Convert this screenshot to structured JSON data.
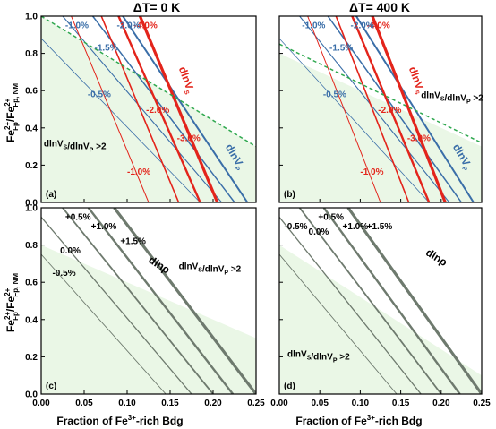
{
  "figure": {
    "title_left": "ΔT= 0 K",
    "title_right": "ΔT= 400 K",
    "xlabel": "Fraction of Fe3+-rich Bdg",
    "ylabel": "Fe2+Fp/Fe2+Fp, NM",
    "x_ticks": [
      "0.00",
      "0.05",
      "0.10",
      "0.15",
      "0.20",
      "0.25"
    ],
    "y_ticks": [
      "0.0",
      "0.2",
      "0.4",
      "0.6",
      "0.8",
      "1.0"
    ]
  },
  "colors": {
    "red": "#e3241b",
    "blue": "#3a6ea8",
    "green_dash": "#2fa84f",
    "shade": "#eaf7e6",
    "black": "#000000",
    "gray": "#6e7a6e"
  },
  "chart_data": [
    {
      "id": "a",
      "panel_label": "(a)",
      "type": "line",
      "xlim": [
        0,
        0.25
      ],
      "ylim": [
        0,
        1
      ],
      "shade": [
        [
          0.0,
          1.0
        ],
        [
          0.25,
          0.3
        ]
      ],
      "dashed": [
        [
          0.0,
          1.0
        ],
        [
          0.25,
          0.3
        ]
      ],
      "red_lines": [
        {
          "label": "-4.0%",
          "width": 3.2,
          "p": [
            [
              0.115,
              1.0
            ],
            [
              0.205,
              0.0
            ]
          ]
        },
        {
          "label": "-3.0%",
          "width": 2.4,
          "p": [
            [
              0.09,
              1.0
            ],
            [
              0.185,
              0.0
            ]
          ]
        },
        {
          "label": "-2.0%",
          "width": 1.6,
          "p": [
            [
              0.07,
              1.0
            ],
            [
              0.16,
              0.0
            ]
          ]
        },
        {
          "label": "-1.0%",
          "width": 1.0,
          "p": [
            [
              0.035,
              1.0
            ],
            [
              0.125,
              0.0
            ]
          ]
        }
      ],
      "blue_lines": [
        {
          "label": "-2.0%",
          "width": 2.0,
          "p": [
            [
              0.095,
              1.0
            ],
            [
              0.24,
              0.0
            ]
          ]
        },
        {
          "label": "-1.5%",
          "width": 1.5,
          "p": [
            [
              0.06,
              1.0
            ],
            [
              0.225,
              0.0
            ]
          ]
        },
        {
          "label": "-1.0%",
          "width": 1.1,
          "p": [
            [
              0.025,
              1.0
            ],
            [
              0.21,
              0.0
            ]
          ]
        },
        {
          "label": "-0.5%",
          "width": 0.8,
          "p": [
            [
              0.0,
              0.88
            ],
            [
              0.185,
              0.0
            ]
          ]
        }
      ],
      "red_annotations": [
        {
          "text": "-4.0%",
          "at": [
            0.108,
            0.935
          ]
        },
        {
          "text": "-3.0%",
          "at": [
            0.158,
            0.33
          ]
        },
        {
          "text": "-2.0%",
          "at": [
            0.122,
            0.48
          ]
        },
        {
          "text": "-1.0%",
          "at": [
            0.1,
            0.15
          ]
        }
      ],
      "blue_annotations": [
        {
          "text": "-2.0%",
          "at": [
            0.088,
            0.935
          ]
        },
        {
          "text": "-1.5%",
          "at": [
            0.062,
            0.815
          ]
        },
        {
          "text": "-1.0%",
          "at": [
            0.028,
            0.935
          ]
        },
        {
          "text": "-0.5%",
          "at": [
            0.054,
            0.565
          ]
        }
      ],
      "series_labels": [
        {
          "text": "dlnVS",
          "color": "red",
          "at": [
            0.16,
            0.72
          ],
          "rotate": 70
        },
        {
          "text": "dlnVP",
          "color": "blue",
          "at": [
            0.214,
            0.3
          ],
          "rotate": 60
        }
      ],
      "ratio_label": {
        "text": "dlnVS/dlnVP >2",
        "at": [
          0.003,
          0.3
        ]
      }
    },
    {
      "id": "b",
      "panel_label": "(b)",
      "type": "line",
      "xlim": [
        0,
        0.25
      ],
      "ylim": [
        0,
        1
      ],
      "shade": [
        [
          0.0,
          0.8
        ],
        [
          0.25,
          0.3
        ]
      ],
      "dashed": [
        [
          0.0,
          0.85
        ],
        [
          0.25,
          0.32
        ]
      ],
      "red_lines": [
        {
          "label": "-4.0%",
          "width": 3.2,
          "p": [
            [
              0.115,
              1.0
            ],
            [
              0.205,
              0.0
            ]
          ]
        },
        {
          "label": "-3.0%",
          "width": 2.4,
          "p": [
            [
              0.09,
              1.0
            ],
            [
              0.185,
              0.0
            ]
          ]
        },
        {
          "label": "-2.0%",
          "width": 1.6,
          "p": [
            [
              0.07,
              1.0
            ],
            [
              0.16,
              0.0
            ]
          ]
        },
        {
          "label": "-1.0%",
          "width": 1.0,
          "p": [
            [
              0.035,
              1.0
            ],
            [
              0.125,
              0.0
            ]
          ]
        }
      ],
      "blue_lines": [
        {
          "label": "-2.0%",
          "width": 2.0,
          "p": [
            [
              0.095,
              1.0
            ],
            [
              0.24,
              0.0
            ]
          ]
        },
        {
          "label": "-1.5%",
          "width": 1.5,
          "p": [
            [
              0.06,
              1.0
            ],
            [
              0.225,
              0.0
            ]
          ]
        },
        {
          "label": "-1.0%",
          "width": 1.1,
          "p": [
            [
              0.025,
              1.0
            ],
            [
              0.21,
              0.0
            ]
          ]
        },
        {
          "label": "-0.5%",
          "width": 0.8,
          "p": [
            [
              0.0,
              0.88
            ],
            [
              0.185,
              0.0
            ]
          ]
        }
      ],
      "red_annotations": [
        {
          "text": "-4.0%",
          "at": [
            0.108,
            0.935
          ]
        },
        {
          "text": "-3.0%",
          "at": [
            0.158,
            0.33
          ]
        },
        {
          "text": "-2.0%",
          "at": [
            0.122,
            0.48
          ]
        },
        {
          "text": "-1.0%",
          "at": [
            0.1,
            0.15
          ]
        }
      ],
      "blue_annotations": [
        {
          "text": "-2.0%",
          "at": [
            0.088,
            0.935
          ]
        },
        {
          "text": "-1.5%",
          "at": [
            0.062,
            0.815
          ]
        },
        {
          "text": "-1.0%",
          "at": [
            0.028,
            0.935
          ]
        },
        {
          "text": "-0.5%",
          "at": [
            0.054,
            0.565
          ]
        }
      ],
      "series_labels": [
        {
          "text": "dlnVS",
          "color": "red",
          "at": [
            0.16,
            0.72
          ],
          "rotate": 70
        },
        {
          "text": "dlnVP",
          "color": "blue",
          "at": [
            0.214,
            0.3
          ],
          "rotate": 60
        }
      ],
      "ratio_label": {
        "text": "dlnVS/dlnVP >2",
        "at": [
          0.175,
          0.56
        ]
      }
    },
    {
      "id": "c",
      "panel_label": "(c)",
      "type": "line",
      "xlim": [
        0,
        0.25
      ],
      "ylim": [
        0,
        1
      ],
      "shade": [
        [
          0.0,
          0.8
        ],
        [
          0.25,
          0.3
        ]
      ],
      "dashed": [],
      "black_lines": [
        {
          "label": "+1.5%",
          "width": 3.2,
          "p": [
            [
              0.085,
              1.0
            ],
            [
              0.25,
              0.0
            ]
          ]
        },
        {
          "label": "+1.0%",
          "width": 2.4,
          "p": [
            [
              0.055,
              1.0
            ],
            [
              0.223,
              0.0
            ]
          ]
        },
        {
          "label": "+0.5%",
          "width": 1.8,
          "p": [
            [
              0.025,
              1.0
            ],
            [
              0.2,
              0.0
            ]
          ]
        },
        {
          "label": "0.0%",
          "width": 1.3,
          "p": [
            [
              0.0,
              0.95
            ],
            [
              0.175,
              0.0
            ]
          ]
        },
        {
          "label": "-0.5%",
          "width": 0.9,
          "p": [
            [
              0.0,
              0.75
            ],
            [
              0.145,
              0.0
            ]
          ]
        }
      ],
      "black_annotations": [
        {
          "text": "+0.5%",
          "at": [
            0.028,
            0.935
          ]
        },
        {
          "text": "+1.0%",
          "at": [
            0.058,
            0.885
          ]
        },
        {
          "text": "+1.5%",
          "at": [
            0.092,
            0.805
          ]
        },
        {
          "text": "0.0%",
          "at": [
            0.022,
            0.755
          ]
        },
        {
          "text": "-0.5%",
          "at": [
            0.013,
            0.635
          ]
        }
      ],
      "series_labels": [
        {
          "text": "dlnρ",
          "color": "black",
          "at": [
            0.124,
            0.71
          ],
          "rotate": 32
        }
      ],
      "ratio_label": {
        "text": "dlnVS/dlnVP >2",
        "at": [
          0.16,
          0.67
        ]
      }
    },
    {
      "id": "d",
      "panel_label": "(d)",
      "type": "line",
      "xlim": [
        0,
        0.25
      ],
      "ylim": [
        0,
        1
      ],
      "shade": [
        [
          0.0,
          0.8
        ],
        [
          0.25,
          0.1
        ]
      ],
      "dashed": [],
      "black_lines": [
        {
          "label": "+1.5%",
          "width": 3.2,
          "p": [
            [
              0.085,
              1.0
            ],
            [
              0.25,
              0.0
            ]
          ]
        },
        {
          "label": "+1.0%",
          "width": 2.4,
          "p": [
            [
              0.055,
              1.0
            ],
            [
              0.223,
              0.0
            ]
          ]
        },
        {
          "label": "+0.5%",
          "width": 1.8,
          "p": [
            [
              0.025,
              1.0
            ],
            [
              0.2,
              0.0
            ]
          ]
        },
        {
          "label": "0.0%",
          "width": 1.3,
          "p": [
            [
              0.0,
              0.95
            ],
            [
              0.175,
              0.0
            ]
          ]
        },
        {
          "label": "-0.5%",
          "width": 0.9,
          "p": [
            [
              0.0,
              0.75
            ],
            [
              0.145,
              0.0
            ]
          ]
        }
      ],
      "black_annotations": [
        {
          "text": "-0.5%",
          "at": [
            0.006,
            0.885
          ]
        },
        {
          "text": "+0.5%",
          "at": [
            0.048,
            0.935
          ]
        },
        {
          "text": "0.0%",
          "at": [
            0.036,
            0.855
          ]
        },
        {
          "text": "+1.0%",
          "at": [
            0.078,
            0.885
          ]
        },
        {
          "text": "+1.5%",
          "at": [
            0.108,
            0.885
          ]
        }
      ],
      "series_labels": [
        {
          "text": "dlnρ",
          "color": "black",
          "at": [
            0.18,
            0.75
          ],
          "rotate": 32
        }
      ],
      "ratio_label": {
        "text": "dlnVS/dlnVP >2",
        "at": [
          0.01,
          0.2
        ]
      }
    }
  ]
}
